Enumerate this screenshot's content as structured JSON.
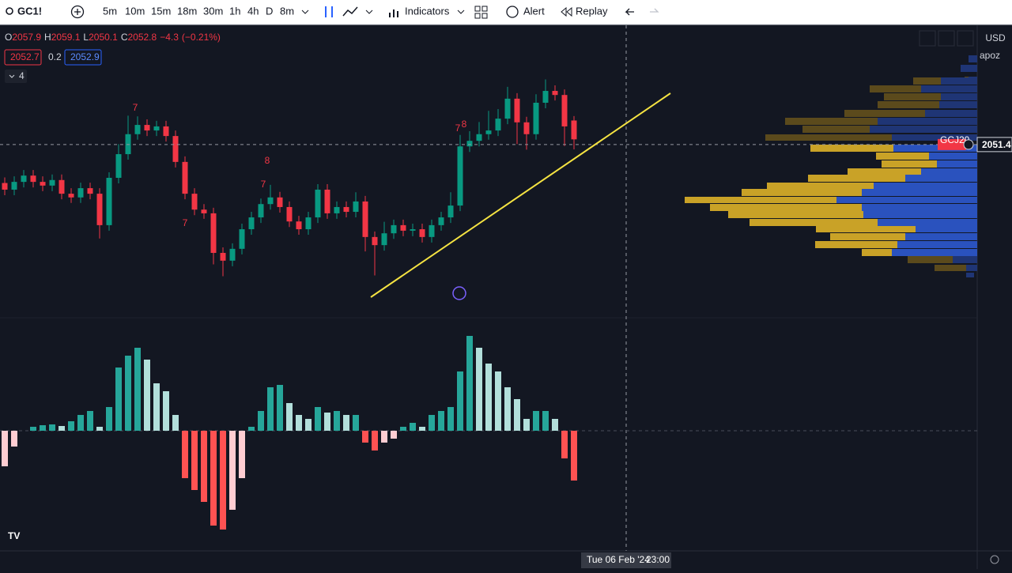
{
  "toolbar": {
    "symbol": "GC1!",
    "intervals": [
      "5m",
      "10m",
      "15m",
      "18m",
      "30m",
      "1h",
      "4h",
      "D",
      "8m"
    ],
    "indicators": "Indicators",
    "alert": "Alert",
    "replay": "Replay"
  },
  "legend": {
    "labels": [
      "O",
      "H",
      "L",
      "C"
    ],
    "change": "−4.3",
    "change_pct": "(−0.21%)",
    "tags": [
      "2052.7",
      "0.2",
      "2052.9"
    ],
    "collapse_count": "4"
  },
  "price_scale": {
    "currency": "USD",
    "user": "apoz",
    "last_price": 2051.4,
    "symbol_tag": "GCJ20"
  },
  "time_scale": {
    "crosshair_date": "Tue 06 Feb '24",
    "crosshair_time": "23:00"
  },
  "signals": [
    "7",
    "8",
    "7",
    "7",
    "7",
    "8"
  ],
  "chart_data": [
    {
      "type": "candlestick",
      "ylim": [
        2005,
        2083
      ],
      "up_color": "#089981",
      "down_color": "#f23645",
      "candles": [
        [
          2041.0,
          2042.5,
          2037.7,
          2039.2
        ],
        [
          2039.2,
          2042.8,
          2037.7,
          2041.3
        ],
        [
          2041.3,
          2044.5,
          2039.8,
          2043.0
        ],
        [
          2043.0,
          2044.5,
          2039.8,
          2041.3
        ],
        [
          2041.3,
          2042.8,
          2038.8,
          2040.3
        ],
        [
          2040.3,
          2043.3,
          2038.8,
          2041.8
        ],
        [
          2041.8,
          2043.3,
          2036.6,
          2038.1
        ],
        [
          2038.1,
          2039.6,
          2035.6,
          2037.1
        ],
        [
          2037.1,
          2041.1,
          2035.6,
          2039.6
        ],
        [
          2039.6,
          2041.1,
          2036.6,
          2038.1
        ],
        [
          2038.1,
          2039.6,
          2026.0,
          2029.6
        ],
        [
          2029.6,
          2043.9,
          2028.1,
          2042.4
        ],
        [
          2042.4,
          2051.5,
          2040.9,
          2048.8
        ],
        [
          2048.8,
          2059.2,
          2047.3,
          2054.2
        ],
        [
          2054.2,
          2059.0,
          2052.7,
          2056.7
        ],
        [
          2056.7,
          2058.2,
          2053.7,
          2055.2
        ],
        [
          2055.2,
          2057.8,
          2053.7,
          2056.3
        ],
        [
          2056.3,
          2057.8,
          2052.2,
          2053.7
        ],
        [
          2053.7,
          2055.2,
          2045.2,
          2046.7
        ],
        [
          2046.7,
          2048.2,
          2036.6,
          2038.1
        ],
        [
          2038.1,
          2039.6,
          2032.3,
          2033.8
        ],
        [
          2033.8,
          2035.3,
          2031.3,
          2032.8
        ],
        [
          2032.8,
          2034.3,
          2019.0,
          2022.1
        ],
        [
          2022.1,
          2023.6,
          2015.8,
          2020.0
        ],
        [
          2020.0,
          2024.7,
          2018.5,
          2023.2
        ],
        [
          2023.2,
          2030.0,
          2021.7,
          2028.5
        ],
        [
          2028.5,
          2033.2,
          2027.0,
          2031.7
        ],
        [
          2031.7,
          2036.8,
          2030.2,
          2035.3
        ],
        [
          2035.3,
          2040.5,
          2033.8,
          2037.1
        ],
        [
          2037.1,
          2038.6,
          2033.0,
          2034.5
        ],
        [
          2034.5,
          2036.0,
          2029.1,
          2030.6
        ],
        [
          2030.6,
          2032.1,
          2027.0,
          2028.5
        ],
        [
          2028.5,
          2033.2,
          2027.0,
          2031.7
        ],
        [
          2031.7,
          2040.7,
          2030.2,
          2039.2
        ],
        [
          2039.2,
          2040.7,
          2031.3,
          2032.8
        ],
        [
          2032.8,
          2036.0,
          2031.3,
          2034.5
        ],
        [
          2034.5,
          2036.0,
          2031.7,
          2033.2
        ],
        [
          2033.2,
          2038.5,
          2031.7,
          2036.0
        ],
        [
          2036.0,
          2037.5,
          2022.5,
          2026.4
        ],
        [
          2026.4,
          2027.9,
          2016.0,
          2024.2
        ],
        [
          2024.2,
          2030.5,
          2022.7,
          2027.4
        ],
        [
          2027.4,
          2031.1,
          2025.9,
          2029.6
        ],
        [
          2029.6,
          2031.1,
          2026.6,
          2028.1
        ],
        [
          2028.1,
          2030.0,
          2026.6,
          2028.5
        ],
        [
          2028.5,
          2030.0,
          2024.9,
          2026.4
        ],
        [
          2026.4,
          2031.1,
          2024.9,
          2029.6
        ],
        [
          2029.6,
          2033.2,
          2028.1,
          2031.7
        ],
        [
          2031.7,
          2038.5,
          2030.2,
          2034.9
        ],
        [
          2034.9,
          2054.0,
          2033.4,
          2050.9
        ],
        [
          2050.9,
          2055.0,
          2049.4,
          2052.4
        ],
        [
          2052.4,
          2057.5,
          2050.9,
          2054.2
        ],
        [
          2054.2,
          2060.5,
          2052.7,
          2055.2
        ],
        [
          2055.2,
          2061.0,
          2053.7,
          2058.4
        ],
        [
          2058.4,
          2067.0,
          2056.9,
          2063.8
        ],
        [
          2063.8,
          2065.3,
          2051.5,
          2057.4
        ],
        [
          2057.4,
          2058.9,
          2050.0,
          2054.2
        ],
        [
          2054.2,
          2065.0,
          2052.7,
          2062.7
        ],
        [
          2062.7,
          2069.0,
          2061.2,
          2065.9
        ],
        [
          2065.9,
          2067.4,
          2063.3,
          2064.8
        ],
        [
          2064.8,
          2066.3,
          2051.0,
          2056.3
        ],
        [
          2057.9,
          2059.1,
          2050.1,
          2052.8
        ]
      ]
    },
    {
      "type": "histogram",
      "ylim": [
        -13,
        14
      ],
      "colors": [
        "#26a69a",
        "#b2dfdb",
        "#ff5252",
        "#ffcdd2"
      ],
      "values": [
        -4.5,
        -2,
        0,
        0.5,
        0.7,
        0.8,
        0.6,
        1.2,
        2,
        2.5,
        0.5,
        3,
        8,
        9.5,
        10.5,
        9,
        6,
        5,
        2,
        -6,
        -7.5,
        -9,
        -12,
        -12.5,
        -10,
        -6,
        0.5,
        2.5,
        5.5,
        5.8,
        3.5,
        2,
        1.5,
        3,
        2.3,
        2.5,
        2,
        2,
        -1.5,
        -2.5,
        -1.5,
        -1,
        0.5,
        1,
        0.5,
        2,
        2.5,
        3,
        7.5,
        12,
        10.5,
        8.5,
        7.5,
        5.5,
        4,
        1.5,
        2.5,
        2.5,
        1.5,
        -3.5,
        -6.3
      ]
    }
  ]
}
